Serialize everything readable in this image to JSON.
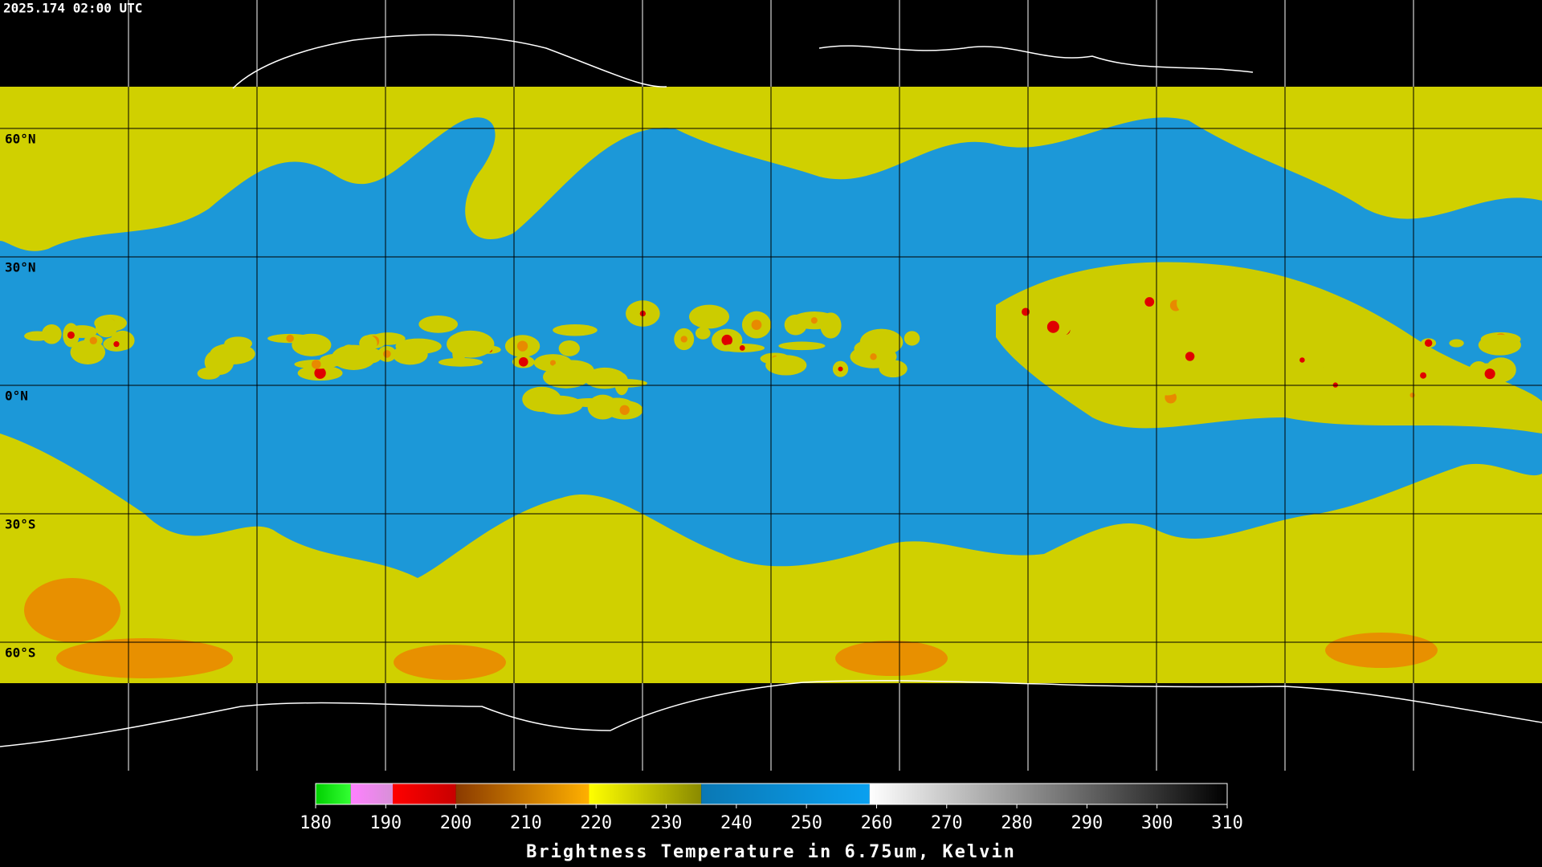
{
  "header": {
    "timestamp": "2025.174 02:00 UTC"
  },
  "map": {
    "lat_lines": [
      60,
      30,
      0,
      -30,
      -60
    ],
    "lat_labels": [
      "60°N",
      "30°N",
      "0°N",
      "30°S",
      "60°S"
    ]
  },
  "colorbar": {
    "title": "Brightness Temperature in 6.75um, Kelvin",
    "range": [
      180,
      310
    ],
    "ticks": [
      180,
      190,
      200,
      210,
      220,
      230,
      240,
      250,
      260,
      270,
      280,
      290,
      300,
      310
    ],
    "segments": [
      {
        "from": 180,
        "to": 185,
        "colors": [
          "#00d000",
          "#33ff33"
        ]
      },
      {
        "from": 185,
        "to": 191,
        "colors": [
          "#ff80ff",
          "#d890d8"
        ]
      },
      {
        "from": 191,
        "to": 200,
        "colors": [
          "#ff0000",
          "#c80000"
        ]
      },
      {
        "from": 200,
        "to": 219,
        "colors": [
          "#8a3a00",
          "#ffb000"
        ]
      },
      {
        "from": 219,
        "to": 235,
        "colors": [
          "#ffff00",
          "#8a8a00"
        ]
      },
      {
        "from": 235,
        "to": 259,
        "colors": [
          "#0a78b4",
          "#0aa0f0"
        ]
      },
      {
        "from": 259,
        "to": 310,
        "colors": [
          "#ffffff",
          "#000000"
        ]
      }
    ]
  }
}
